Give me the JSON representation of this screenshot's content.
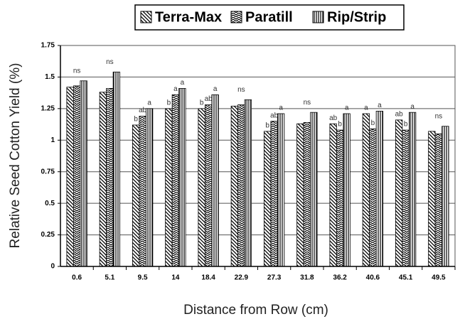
{
  "chart_data": {
    "type": "bar",
    "x_label": "Distance from Row (cm)",
    "y_label": "Relative Seed Cotton Yield (%)",
    "categories": [
      "0.6",
      "5.1",
      "9.5",
      "14",
      "18.4",
      "22.9",
      "27.3",
      "31.8",
      "36.2",
      "40.6",
      "45.1",
      "49.5"
    ],
    "series": [
      {
        "name": "Terra-Max",
        "color": "#000000",
        "pattern": "diagonal",
        "values": [
          1.42,
          1.38,
          1.12,
          1.25,
          1.25,
          1.27,
          1.07,
          1.13,
          1.13,
          1.21,
          1.16,
          1.07
        ]
      },
      {
        "name": "Paratill",
        "color": "#000000",
        "pattern": "chevron",
        "values": [
          1.43,
          1.41,
          1.19,
          1.36,
          1.28,
          1.28,
          1.15,
          1.14,
          1.08,
          1.09,
          1.08,
          1.05
        ]
      },
      {
        "name": "Rip/Strip",
        "color": "#000000",
        "pattern": "vertical",
        "values": [
          1.47,
          1.54,
          1.25,
          1.41,
          1.36,
          1.32,
          1.21,
          1.22,
          1.21,
          1.23,
          1.22,
          1.11
        ]
      }
    ],
    "annotations": [
      [
        "ns"
      ],
      [
        "ns"
      ],
      [
        "b",
        "ab",
        "a"
      ],
      [
        "b",
        "a",
        "a"
      ],
      [
        "b",
        "ab",
        "a"
      ],
      [
        "ns"
      ],
      [
        "b",
        "ab",
        "a"
      ],
      [
        "ns"
      ],
      [
        "ab",
        "b",
        "a"
      ],
      [
        "a",
        "b",
        "a"
      ],
      [
        "ab",
        "b",
        "a"
      ],
      [
        "ns"
      ]
    ],
    "ylim": [
      0,
      1.75
    ],
    "yticks": [
      0,
      0.25,
      0.5,
      0.75,
      1,
      1.25,
      1.5,
      1.75
    ],
    "grid": true,
    "legend": "top"
  }
}
